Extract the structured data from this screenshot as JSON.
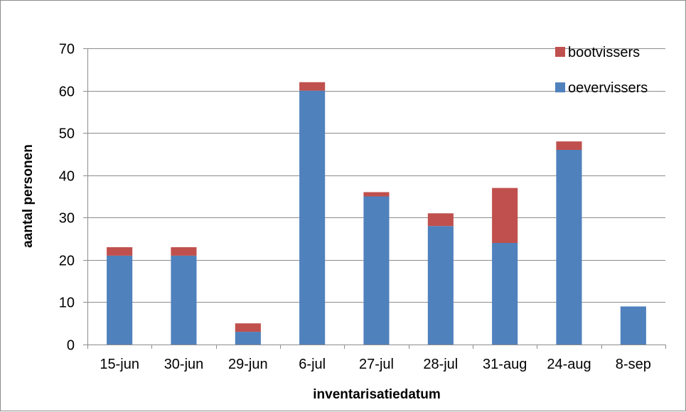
{
  "chart_data": {
    "type": "bar",
    "stacked": true,
    "categories": [
      "15-jun",
      "30-jun",
      "29-jun",
      "6-jul",
      "27-jul",
      "28-jul",
      "31-aug",
      "24-aug",
      "8-sep"
    ],
    "series": [
      {
        "name": "oevervissers",
        "color": "#4f81bd",
        "values": [
          21,
          21,
          3,
          60,
          35,
          28,
          24,
          46,
          9
        ]
      },
      {
        "name": "bootvissers",
        "color": "#c0504d",
        "values": [
          2,
          2,
          2,
          2,
          1,
          3,
          13,
          2,
          0
        ]
      }
    ],
    "title": "",
    "xlabel": "inventarisatiedatum",
    "ylabel": "aantal personen",
    "ylim": [
      0,
      70
    ],
    "yticks": [
      0,
      10,
      20,
      30,
      40,
      50,
      60,
      70
    ],
    "grid": true,
    "legend_position": "top-right",
    "legend_order": [
      "bootvissers",
      "oevervissers"
    ]
  }
}
